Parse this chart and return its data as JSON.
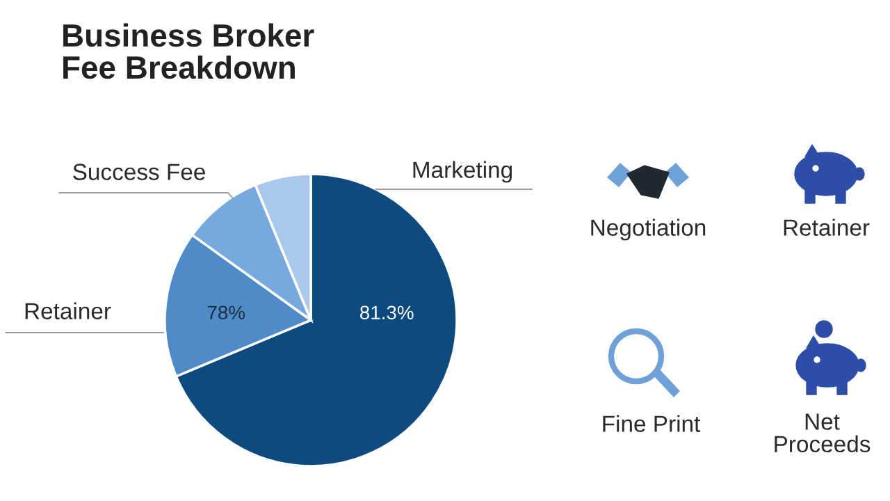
{
  "chart_data": {
    "type": "pie",
    "title": "Business Broker\nFee Breakdown",
    "categories": [
      "Marketing",
      "Retainer",
      "Success Fee",
      null
    ],
    "values": [
      68.7,
      16.2,
      8.9,
      6.2
    ],
    "colors": [
      "#0d4a80",
      "#4f8bc9",
      "#77a9de",
      "#a9c9ec"
    ],
    "annotations": [
      "Negotiation",
      "Retainer",
      "Fine Print",
      "Net\nProceeds",
      "81.3%",
      "78%"
    ]
  }
}
